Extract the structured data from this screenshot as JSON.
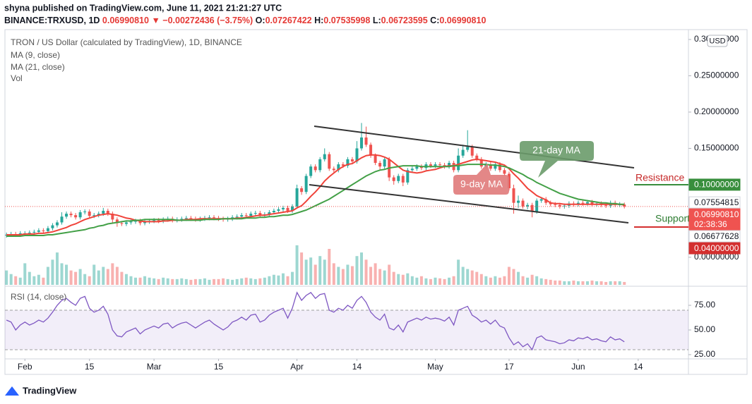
{
  "chart_data": {
    "type": "candlestick",
    "publisher": "shyna published on TradingView.com, June 11, 2021 21:21:27 UTC",
    "symbol": "BINANCE:TRXUSD, 1D",
    "last": "0.06990810",
    "change": "▼ −0.00272436 (−3.75%)",
    "ohlc_header": [
      {
        "label": "O:",
        "value": "0.07267422"
      },
      {
        "label": "H:",
        "value": "0.07535998"
      },
      {
        "label": "L:",
        "value": "0.06723595"
      },
      {
        "label": "C:",
        "value": "0.06990810"
      }
    ],
    "title": "TRON / US Dollar (calculated by TradingView), 1D, BINANCE",
    "currency": "USD",
    "brand": "TradingView",
    "up_color": "#26a69a",
    "down_color": "#ef5350",
    "xlim": [
      -1.4,
      147.9
    ],
    "xticks": [
      {
        "value": 4,
        "label": "Feb"
      },
      {
        "value": 18,
        "label": "15"
      },
      {
        "value": 32,
        "label": "Mar"
      },
      {
        "value": 46,
        "label": "15"
      },
      {
        "value": 63,
        "label": "Apr"
      },
      {
        "value": 76,
        "label": "14"
      },
      {
        "value": 93,
        "label": "May"
      },
      {
        "value": 109,
        "label": "17"
      },
      {
        "value": 124,
        "label": "Jun"
      },
      {
        "value": 137,
        "label": "14"
      }
    ],
    "ylim": [
      -0.038,
      0.3136
    ],
    "yticks": [
      {
        "value": 0.3,
        "label": "0.30000000"
      },
      {
        "value": 0.25,
        "label": "0.25000000"
      },
      {
        "value": 0.2,
        "label": "0.20000000"
      },
      {
        "value": 0.15,
        "label": "0.15000000"
      },
      {
        "value": 0,
        "label": "0.00000000"
      }
    ],
    "grid": false,
    "open": [
      0.03,
      0.031,
      0.032,
      0.031,
      0.033,
      0.033,
      0.034,
      0.035,
      0.037,
      0.036,
      0.04,
      0.044,
      0.048,
      0.056,
      0.06,
      0.058,
      0.055,
      0.062,
      0.063,
      0.057,
      0.058,
      0.06,
      0.064,
      0.06,
      0.052,
      0.047,
      0.046,
      0.048,
      0.049,
      0.05,
      0.047,
      0.049,
      0.05,
      0.051,
      0.05,
      0.052,
      0.053,
      0.051,
      0.052,
      0.053,
      0.054,
      0.053,
      0.052,
      0.053,
      0.054,
      0.055,
      0.054,
      0.053,
      0.052,
      0.053,
      0.055,
      0.056,
      0.058,
      0.057,
      0.06,
      0.061,
      0.058,
      0.059,
      0.062,
      0.064,
      0.066,
      0.068,
      0.064,
      0.07,
      0.095,
      0.09,
      0.112,
      0.125,
      0.12,
      0.135,
      0.142,
      0.122,
      0.12,
      0.128,
      0.126,
      0.135,
      0.132,
      0.15,
      0.165,
      0.155,
      0.14,
      0.13,
      0.125,
      0.135,
      0.11,
      0.105,
      0.112,
      0.103,
      0.12,
      0.122,
      0.125,
      0.123,
      0.128,
      0.126,
      0.128,
      0.127,
      0.125,
      0.13,
      0.12,
      0.14,
      0.148,
      0.152,
      0.14,
      0.135,
      0.125,
      0.128,
      0.122,
      0.128,
      0.12,
      0.115,
      0.095,
      0.075,
      0.078,
      0.07,
      0.072,
      0.063,
      0.078,
      0.08,
      0.075,
      0.073,
      0.072,
      0.07,
      0.071,
      0.074,
      0.073,
      0.075,
      0.074,
      0.076,
      0.073,
      0.074,
      0.072,
      0.071,
      0.075,
      0.072,
      0.07267422
    ],
    "high": [
      0.034,
      0.035,
      0.035,
      0.036,
      0.036,
      0.037,
      0.038,
      0.04,
      0.04,
      0.043,
      0.047,
      0.051,
      0.062,
      0.063,
      0.063,
      0.061,
      0.065,
      0.066,
      0.066,
      0.061,
      0.063,
      0.068,
      0.067,
      0.063,
      0.055,
      0.05,
      0.051,
      0.052,
      0.053,
      0.053,
      0.052,
      0.053,
      0.054,
      0.054,
      0.055,
      0.056,
      0.056,
      0.055,
      0.056,
      0.057,
      0.057,
      0.056,
      0.056,
      0.057,
      0.058,
      0.058,
      0.057,
      0.056,
      0.056,
      0.058,
      0.059,
      0.061,
      0.061,
      0.063,
      0.064,
      0.064,
      0.062,
      0.065,
      0.067,
      0.069,
      0.071,
      0.071,
      0.073,
      0.1,
      0.098,
      0.115,
      0.128,
      0.128,
      0.138,
      0.15,
      0.145,
      0.125,
      0.131,
      0.131,
      0.138,
      0.138,
      0.16,
      0.185,
      0.18,
      0.158,
      0.143,
      0.133,
      0.138,
      0.138,
      0.113,
      0.115,
      0.115,
      0.123,
      0.125,
      0.128,
      0.128,
      0.131,
      0.131,
      0.131,
      0.131,
      0.13,
      0.133,
      0.133,
      0.15,
      0.155,
      0.175,
      0.155,
      0.143,
      0.138,
      0.131,
      0.131,
      0.131,
      0.131,
      0.123,
      0.118,
      0.1,
      0.085,
      0.081,
      0.075,
      0.075,
      0.081,
      0.083,
      0.083,
      0.078,
      0.076,
      0.075,
      0.074,
      0.077,
      0.077,
      0.078,
      0.078,
      0.079,
      0.079,
      0.077,
      0.077,
      0.075,
      0.078,
      0.078,
      0.076,
      0.07535998
    ],
    "low": [
      0.027,
      0.028,
      0.028,
      0.028,
      0.03,
      0.03,
      0.031,
      0.032,
      0.033,
      0.033,
      0.037,
      0.041,
      0.045,
      0.053,
      0.055,
      0.052,
      0.052,
      0.059,
      0.054,
      0.054,
      0.055,
      0.057,
      0.057,
      0.046,
      0.042,
      0.043,
      0.043,
      0.045,
      0.046,
      0.044,
      0.044,
      0.046,
      0.047,
      0.047,
      0.047,
      0.049,
      0.048,
      0.048,
      0.049,
      0.05,
      0.05,
      0.049,
      0.049,
      0.05,
      0.051,
      0.051,
      0.05,
      0.049,
      0.049,
      0.05,
      0.052,
      0.053,
      0.054,
      0.054,
      0.057,
      0.055,
      0.055,
      0.056,
      0.059,
      0.061,
      0.063,
      0.061,
      0.061,
      0.067,
      0.086,
      0.087,
      0.109,
      0.117,
      0.117,
      0.132,
      0.119,
      0.117,
      0.117,
      0.123,
      0.123,
      0.129,
      0.129,
      0.147,
      0.152,
      0.137,
      0.127,
      0.12,
      0.122,
      0.105,
      0.1,
      0.102,
      0.098,
      0.1,
      0.117,
      0.119,
      0.12,
      0.12,
      0.123,
      0.123,
      0.124,
      0.122,
      0.122,
      0.117,
      0.117,
      0.137,
      0.145,
      0.137,
      0.132,
      0.122,
      0.122,
      0.119,
      0.119,
      0.117,
      0.112,
      0.092,
      0.06,
      0.068,
      0.067,
      0.066,
      0.055,
      0.06,
      0.075,
      0.072,
      0.07,
      0.069,
      0.067,
      0.067,
      0.068,
      0.07,
      0.07,
      0.071,
      0.071,
      0.07,
      0.07,
      0.069,
      0.068,
      0.068,
      0.069,
      0.069,
      0.06723595
    ],
    "close": [
      0.031,
      0.032,
      0.031,
      0.033,
      0.033,
      0.034,
      0.035,
      0.037,
      0.036,
      0.04,
      0.044,
      0.048,
      0.056,
      0.06,
      0.058,
      0.055,
      0.062,
      0.063,
      0.057,
      0.058,
      0.06,
      0.064,
      0.06,
      0.052,
      0.047,
      0.046,
      0.048,
      0.049,
      0.05,
      0.047,
      0.049,
      0.05,
      0.051,
      0.05,
      0.052,
      0.053,
      0.051,
      0.052,
      0.053,
      0.054,
      0.053,
      0.052,
      0.053,
      0.054,
      0.055,
      0.054,
      0.053,
      0.052,
      0.053,
      0.055,
      0.056,
      0.058,
      0.057,
      0.06,
      0.061,
      0.058,
      0.059,
      0.062,
      0.064,
      0.066,
      0.068,
      0.064,
      0.07,
      0.095,
      0.09,
      0.112,
      0.125,
      0.12,
      0.135,
      0.142,
      0.122,
      0.12,
      0.128,
      0.126,
      0.135,
      0.132,
      0.15,
      0.165,
      0.155,
      0.14,
      0.13,
      0.125,
      0.135,
      0.11,
      0.105,
      0.112,
      0.103,
      0.12,
      0.122,
      0.125,
      0.123,
      0.128,
      0.126,
      0.128,
      0.127,
      0.125,
      0.13,
      0.12,
      0.14,
      0.148,
      0.152,
      0.14,
      0.135,
      0.125,
      0.128,
      0.122,
      0.128,
      0.12,
      0.115,
      0.095,
      0.075,
      0.078,
      0.07,
      0.072,
      0.063,
      0.078,
      0.08,
      0.075,
      0.073,
      0.072,
      0.07,
      0.071,
      0.074,
      0.073,
      0.075,
      0.074,
      0.076,
      0.073,
      0.074,
      0.072,
      0.071,
      0.075,
      0.072,
      0.07267422,
      0.0699081
    ],
    "series": [
      {
        "name": "MA (9, close)",
        "color": "#f0433a",
        "values": [
          0.031,
          0.031,
          0.031,
          0.031,
          0.032,
          0.032,
          0.032,
          0.033,
          0.033,
          0.034,
          0.035,
          0.037,
          0.039,
          0.041,
          0.044,
          0.046,
          0.049,
          0.052,
          0.054,
          0.056,
          0.058,
          0.059,
          0.06,
          0.059,
          0.058,
          0.056,
          0.054,
          0.053,
          0.051,
          0.05,
          0.049,
          0.049,
          0.049,
          0.049,
          0.05,
          0.05,
          0.051,
          0.051,
          0.051,
          0.052,
          0.052,
          0.052,
          0.053,
          0.053,
          0.053,
          0.053,
          0.053,
          0.053,
          0.053,
          0.053,
          0.054,
          0.054,
          0.055,
          0.056,
          0.057,
          0.058,
          0.058,
          0.059,
          0.06,
          0.061,
          0.062,
          0.063,
          0.064,
          0.068,
          0.071,
          0.077,
          0.084,
          0.09,
          0.097,
          0.105,
          0.111,
          0.116,
          0.121,
          0.125,
          0.128,
          0.129,
          0.133,
          0.137,
          0.14,
          0.141,
          0.141,
          0.14,
          0.138,
          0.135,
          0.13,
          0.125,
          0.12,
          0.118,
          0.117,
          0.116,
          0.117,
          0.119,
          0.12,
          0.121,
          0.123,
          0.125,
          0.126,
          0.126,
          0.128,
          0.13,
          0.132,
          0.134,
          0.135,
          0.134,
          0.133,
          0.132,
          0.131,
          0.129,
          0.127,
          0.122,
          0.115,
          0.109,
          0.102,
          0.095,
          0.09,
          0.085,
          0.082,
          0.079,
          0.075,
          0.074,
          0.074,
          0.073,
          0.073,
          0.073,
          0.073,
          0.073,
          0.073,
          0.073,
          0.073,
          0.073,
          0.073,
          0.073,
          0.073,
          0.073,
          0.072
        ]
      },
      {
        "name": "MA (21, close)",
        "color": "#43a047",
        "values": [
          0.029,
          0.029,
          0.029,
          0.029,
          0.03,
          0.03,
          0.03,
          0.03,
          0.03,
          0.031,
          0.031,
          0.032,
          0.033,
          0.034,
          0.035,
          0.036,
          0.037,
          0.038,
          0.04,
          0.041,
          0.043,
          0.044,
          0.046,
          0.047,
          0.048,
          0.049,
          0.05,
          0.05,
          0.051,
          0.051,
          0.052,
          0.052,
          0.052,
          0.052,
          0.052,
          0.052,
          0.052,
          0.051,
          0.051,
          0.051,
          0.051,
          0.051,
          0.051,
          0.052,
          0.052,
          0.052,
          0.052,
          0.053,
          0.053,
          0.053,
          0.053,
          0.053,
          0.054,
          0.054,
          0.054,
          0.055,
          0.055,
          0.056,
          0.056,
          0.057,
          0.058,
          0.058,
          0.059,
          0.061,
          0.063,
          0.065,
          0.068,
          0.071,
          0.074,
          0.077,
          0.08,
          0.084,
          0.088,
          0.092,
          0.096,
          0.1,
          0.104,
          0.108,
          0.112,
          0.115,
          0.118,
          0.12,
          0.121,
          0.123,
          0.124,
          0.125,
          0.126,
          0.126,
          0.126,
          0.126,
          0.125,
          0.125,
          0.125,
          0.125,
          0.125,
          0.125,
          0.125,
          0.126,
          0.126,
          0.127,
          0.128,
          0.128,
          0.128,
          0.128,
          0.128,
          0.127,
          0.127,
          0.126,
          0.125,
          0.123,
          0.12,
          0.117,
          0.114,
          0.11,
          0.107,
          0.103,
          0.1,
          0.097,
          0.094,
          0.091,
          0.088,
          0.086,
          0.084,
          0.082,
          0.08,
          0.079,
          0.078,
          0.077,
          0.076,
          0.075,
          0.075,
          0.074,
          0.074,
          0.073,
          0.073
        ]
      }
    ],
    "volume": {
      "name": "Vol",
      "ylim": [
        0,
        100
      ],
      "values": [
        20,
        15,
        12,
        10,
        30,
        18,
        12,
        14,
        10,
        25,
        35,
        45,
        30,
        28,
        20,
        18,
        22,
        15,
        12,
        28,
        20,
        25,
        22,
        30,
        25,
        18,
        15,
        12,
        10,
        10,
        12,
        10,
        9,
        8,
        10,
        9,
        8,
        8,
        9,
        8,
        7,
        8,
        8,
        9,
        7,
        8,
        8,
        9,
        8,
        7,
        8,
        9,
        10,
        9,
        8,
        9,
        10,
        12,
        14,
        13,
        16,
        12,
        18,
        55,
        45,
        35,
        38,
        28,
        40,
        35,
        50,
        30,
        25,
        22,
        28,
        26,
        40,
        45,
        35,
        25,
        30,
        22,
        20,
        28,
        18,
        15,
        14,
        16,
        12,
        10,
        12,
        9,
        8,
        10,
        9,
        8,
        10,
        12,
        35,
        25,
        22,
        20,
        18,
        15,
        12,
        10,
        12,
        10,
        12,
        25,
        22,
        18,
        12,
        10,
        14,
        12,
        9,
        8,
        7,
        6,
        6,
        5,
        5,
        6,
        5,
        5,
        5,
        6,
        5,
        5,
        4,
        5,
        5,
        5,
        4
      ]
    },
    "price_tags": [
      {
        "value": 0.1,
        "label": "0.10000000",
        "color": "#388e3c",
        "text_color": "#ffffff"
      },
      {
        "value": 0.07554815,
        "label": "0.07554815",
        "color": "#ffffff",
        "text_color": "#131722"
      },
      {
        "value": 0.0699081,
        "label": "0.06990810",
        "countdown": "02:38:36",
        "color": "#ef5350",
        "text_color": "#ffffff"
      },
      {
        "value": 0.06677628,
        "label": "0.06677628",
        "color": "#ffffff",
        "text_color": "#131722"
      },
      {
        "value": 0.04,
        "label": "0.04000000",
        "color": "#d32f2f",
        "text_color": "#ffffff"
      }
    ],
    "annotations": {
      "ma21": "21-day MA",
      "ma9": "9-day MA",
      "resistance": "Resistance",
      "support": "Support"
    },
    "rsi": {
      "name": "RSI (14, close)",
      "color": "#7e57c2",
      "ylim": [
        21.4,
        92.9
      ],
      "band": [
        30,
        70
      ],
      "yticks": [
        {
          "value": 75,
          "label": "75.00"
        },
        {
          "value": 50,
          "label": "50.00"
        },
        {
          "value": 25,
          "label": "25.00"
        }
      ],
      "values": [
        60,
        58,
        50,
        55,
        58,
        55,
        57,
        60,
        58,
        62,
        68,
        75,
        80,
        82,
        78,
        75,
        82,
        84,
        72,
        68,
        70,
        74,
        66,
        50,
        44,
        43,
        48,
        50,
        52,
        46,
        50,
        52,
        54,
        52,
        56,
        57,
        52,
        55,
        57,
        58,
        55,
        52,
        55,
        58,
        60,
        56,
        53,
        50,
        53,
        58,
        60,
        63,
        60,
        65,
        66,
        58,
        60,
        65,
        68,
        70,
        72,
        62,
        72,
        88,
        80,
        85,
        88,
        82,
        86,
        87,
        70,
        68,
        72,
        70,
        75,
        72,
        80,
        84,
        78,
        68,
        63,
        60,
        66,
        52,
        50,
        55,
        48,
        58,
        60,
        62,
        60,
        63,
        61,
        62,
        61,
        59,
        63,
        55,
        70,
        72,
        74,
        65,
        62,
        58,
        60,
        56,
        60,
        54,
        52,
        42,
        35,
        38,
        33,
        36,
        30,
        42,
        44,
        40,
        39,
        38,
        36,
        37,
        40,
        39,
        42,
        41,
        43,
        40,
        41,
        39,
        38,
        43,
        40,
        41,
        38
      ]
    }
  }
}
